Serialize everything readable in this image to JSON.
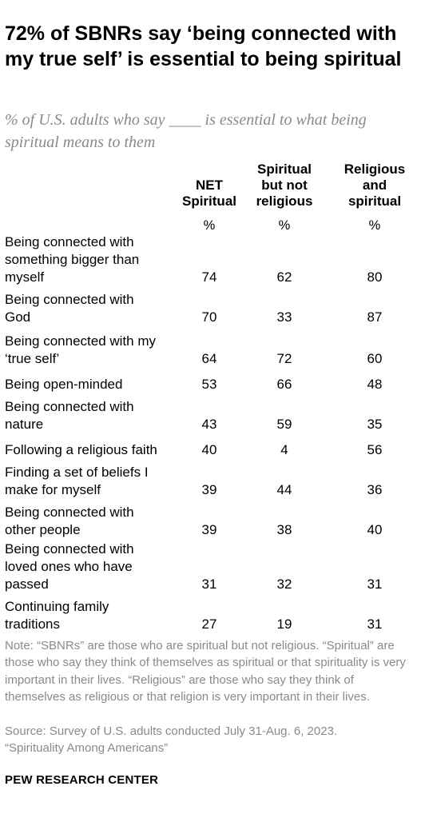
{
  "chart_data": {
    "type": "table",
    "title": "72% of SBNRs say ‘being connected with my true self’ is essential to being spiritual",
    "subtitle": "% of U.S. adults who say ____ is essential to what being spiritual means to them",
    "columns": [
      {
        "name": "NET\nSpiritual",
        "unit": "%"
      },
      {
        "name": "Spiritual\nbut not\nreligious",
        "unit": "%"
      },
      {
        "name": "Religious\nand\nspiritual",
        "unit": "%"
      }
    ],
    "rows": [
      {
        "label": "Being connected with\nsomething bigger than\nmyself",
        "values": [
          74,
          62,
          80
        ]
      },
      {
        "label": "Being connected with\nGod",
        "values": [
          70,
          33,
          87
        ]
      },
      {
        "label": "Being connected with my\n‘true self’",
        "values": [
          64,
          72,
          60
        ]
      },
      {
        "label": "Being open-minded",
        "values": [
          53,
          66,
          48
        ]
      },
      {
        "label": "Being connected with\nnature",
        "values": [
          43,
          59,
          35
        ]
      },
      {
        "label": "Following a religious faith",
        "values": [
          40,
          4,
          56
        ]
      },
      {
        "label": "Finding a set of beliefs I\nmake for myself",
        "values": [
          39,
          44,
          36
        ]
      },
      {
        "label": "Being connected with\nother people",
        "values": [
          39,
          38,
          40
        ]
      },
      {
        "label": "Being connected with\nloved ones who have\npassed",
        "values": [
          31,
          32,
          31
        ]
      },
      {
        "label": "Continuing family\ntraditions",
        "values": [
          27,
          19,
          31
        ]
      }
    ],
    "note": "Note: “SBNRs” are those who are spiritual but not religious. “Spiritual” are those who say they think of themselves as spiritual or that spirituality is very important in their lives. “Religious” are those who say they think of themselves as religious or that religion is very important in their lives.",
    "source": "Source: Survey of U.S. adults conducted July 31-Aug. 6, 2023.\n“Spirituality Among Americans”",
    "organization": "PEW RESEARCH CENTER"
  }
}
